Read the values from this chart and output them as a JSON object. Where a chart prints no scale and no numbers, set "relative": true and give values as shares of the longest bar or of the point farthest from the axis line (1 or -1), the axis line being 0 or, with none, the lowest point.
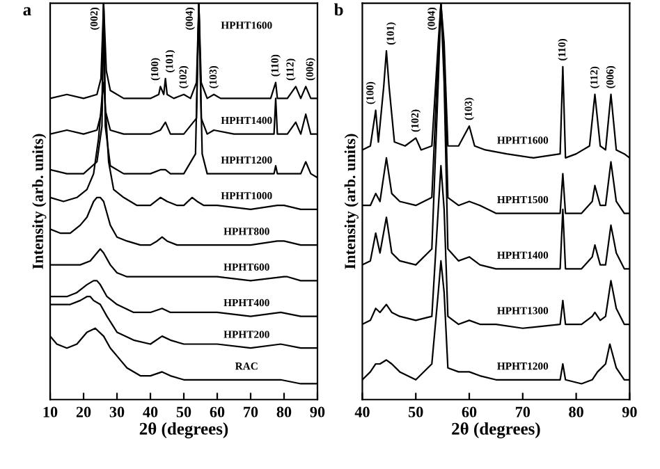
{
  "chart_data": [
    {
      "type": "line",
      "title": "a",
      "xlabel": "2θ (degrees)",
      "ylabel": "Intensity (arb. units)",
      "relative": true,
      "xlim": [
        10,
        90
      ],
      "xticks": [
        10,
        20,
        30,
        40,
        50,
        60,
        70,
        80,
        90
      ],
      "tick_labels": "x",
      "legend": false,
      "grid": false,
      "marker": "none",
      "line_style": "solid",
      "annotations": [
        {
          "text": "(002)",
          "x": 26,
          "y": 1.0
        },
        {
          "text": "(100)",
          "x": 43,
          "y": 0.79
        },
        {
          "text": "(101)",
          "x": 44.5,
          "y": 0.81
        },
        {
          "text": "(102)",
          "x": 50,
          "y": 0.77
        },
        {
          "text": "(004)",
          "x": 54.5,
          "y": 1.0
        },
        {
          "text": "(103)",
          "x": 59,
          "y": 0.77
        },
        {
          "text": "(110)",
          "x": 77.5,
          "y": 0.8
        },
        {
          "text": "(112)",
          "x": 83.5,
          "y": 0.79
        },
        {
          "text": "(006)",
          "x": 86.5,
          "y": 0.79
        }
      ],
      "series": [
        {
          "name": "HPHT1600",
          "color": "#000000",
          "x": [
            10,
            15,
            20,
            24,
            25.2,
            26,
            26.8,
            28,
            32,
            40,
            42.5,
            43,
            44,
            44.5,
            45,
            47,
            50,
            52,
            53.8,
            54.5,
            55.2,
            57,
            59,
            61,
            65,
            70,
            76,
            77.5,
            78,
            81,
            83.5,
            85,
            86.5,
            88,
            90
          ],
          "values": [
            0.76,
            0.77,
            0.76,
            0.77,
            0.81,
            1,
            0.83,
            0.78,
            0.76,
            0.76,
            0.77,
            0.79,
            0.77,
            0.81,
            0.77,
            0.76,
            0.77,
            0.76,
            0.8,
            1,
            0.8,
            0.76,
            0.77,
            0.76,
            0.76,
            0.76,
            0.76,
            0.8,
            0.76,
            0.76,
            0.79,
            0.76,
            0.79,
            0.76,
            0.76
          ]
        },
        {
          "name": "HPHT1400",
          "color": "#000000",
          "x": [
            10,
            15,
            20,
            24,
            25.5,
            26,
            26.5,
            28,
            32,
            40,
            43,
            44.5,
            46,
            50,
            53.8,
            54.5,
            55.2,
            57,
            59,
            65,
            70,
            77,
            77.5,
            78,
            81,
            83.5,
            85,
            86.5,
            88,
            90
          ],
          "values": [
            0.67,
            0.68,
            0.67,
            0.68,
            0.73,
            1,
            0.73,
            0.68,
            0.67,
            0.67,
            0.68,
            0.7,
            0.67,
            0.67,
            0.71,
            1,
            0.71,
            0.67,
            0.68,
            0.67,
            0.67,
            0.67,
            0.76,
            0.67,
            0.67,
            0.7,
            0.67,
            0.72,
            0.67,
            0.67
          ]
        },
        {
          "name": "HPHT1200",
          "color": "#000000",
          "x": [
            10,
            15,
            20,
            24,
            25.5,
            26,
            26.5,
            28,
            32,
            40,
            43,
            44.5,
            46,
            50,
            53.5,
            54.5,
            55.5,
            57,
            60,
            65,
            70,
            77,
            77.5,
            78,
            83,
            85,
            86.5,
            88,
            90
          ],
          "values": [
            0.58,
            0.57,
            0.57,
            0.6,
            0.69,
            1,
            0.69,
            0.59,
            0.57,
            0.57,
            0.58,
            0.58,
            0.57,
            0.57,
            0.62,
            1,
            0.62,
            0.57,
            0.57,
            0.57,
            0.57,
            0.57,
            0.59,
            0.57,
            0.57,
            0.57,
            0.6,
            0.57,
            0.56
          ]
        },
        {
          "name": "HPHT1000",
          "color": "#000000",
          "x": [
            10,
            14,
            18,
            21,
            23,
            24.5,
            25.5,
            26,
            26.5,
            27.5,
            29,
            32,
            36,
            40,
            43,
            45,
            48,
            50,
            52.5,
            54,
            56,
            60,
            70,
            78,
            80,
            85,
            90
          ],
          "values": [
            0.51,
            0.5,
            0.51,
            0.53,
            0.57,
            0.66,
            0.76,
            0.8,
            0.74,
            0.6,
            0.53,
            0.51,
            0.49,
            0.49,
            0.51,
            0.5,
            0.49,
            0.49,
            0.51,
            0.5,
            0.49,
            0.49,
            0.48,
            0.49,
            0.49,
            0.48,
            0.48
          ]
        },
        {
          "name": "HPHT800",
          "color": "#000000",
          "x": [
            10,
            13,
            16,
            19,
            21,
            23,
            24,
            25,
            26,
            27,
            28,
            30,
            33,
            37,
            40,
            42,
            43.5,
            45,
            48,
            55,
            60,
            70,
            78,
            80,
            85,
            90
          ],
          "values": [
            0.43,
            0.42,
            0.42,
            0.44,
            0.46,
            0.5,
            0.51,
            0.51,
            0.5,
            0.47,
            0.44,
            0.41,
            0.4,
            0.39,
            0.39,
            0.4,
            0.41,
            0.4,
            0.39,
            0.39,
            0.39,
            0.39,
            0.4,
            0.4,
            0.39,
            0.39
          ]
        },
        {
          "name": "HPHT600",
          "color": "#000000",
          "x": [
            10,
            13,
            16,
            19,
            22,
            24,
            25,
            26,
            28,
            30,
            33,
            38,
            42,
            43.5,
            45,
            50,
            60,
            70,
            80,
            81,
            85,
            90
          ],
          "values": [
            0.34,
            0.34,
            0.34,
            0.34,
            0.35,
            0.37,
            0.38,
            0.37,
            0.34,
            0.32,
            0.31,
            0.31,
            0.31,
            0.31,
            0.31,
            0.31,
            0.31,
            0.3,
            0.31,
            0.31,
            0.3,
            0.3
          ]
        },
        {
          "name": "HPHT400",
          "color": "#000000",
          "x": [
            10,
            13,
            15,
            18,
            21,
            23,
            24,
            25,
            27,
            30,
            35,
            40,
            43.5,
            46,
            50,
            60,
            70,
            79,
            85,
            90
          ],
          "values": [
            0.26,
            0.26,
            0.26,
            0.27,
            0.29,
            0.3,
            0.3,
            0.29,
            0.26,
            0.24,
            0.22,
            0.22,
            0.23,
            0.22,
            0.22,
            0.22,
            0.21,
            0.22,
            0.21,
            0.21
          ]
        },
        {
          "name": "HPHT200",
          "color": "#000000",
          "x": [
            10,
            13,
            16,
            19,
            21,
            22,
            23,
            25,
            27,
            30,
            35,
            40,
            43.5,
            46,
            50,
            60,
            70,
            79,
            85,
            90
          ],
          "values": [
            0.24,
            0.24,
            0.24,
            0.25,
            0.26,
            0.26,
            0.25,
            0.24,
            0.21,
            0.17,
            0.15,
            0.14,
            0.16,
            0.15,
            0.14,
            0.14,
            0.13,
            0.14,
            0.13,
            0.13
          ]
        },
        {
          "name": "RAC",
          "color": "#000000",
          "x": [
            10,
            12,
            15,
            18,
            21,
            23.5,
            26,
            28,
            30,
            33,
            37,
            40,
            43.5,
            46,
            50,
            60,
            70,
            79,
            85,
            90
          ],
          "values": [
            0.16,
            0.14,
            0.13,
            0.14,
            0.17,
            0.18,
            0.16,
            0.13,
            0.11,
            0.08,
            0.06,
            0.06,
            0.07,
            0.06,
            0.05,
            0.05,
            0.05,
            0.05,
            0.04,
            0.04
          ]
        }
      ]
    },
    {
      "type": "line",
      "title": "b",
      "xlabel": "2θ (degrees)",
      "ylabel": "Intensity (arb. units)",
      "relative": true,
      "xlim": [
        40,
        90
      ],
      "xticks": [
        40,
        50,
        60,
        70,
        80,
        90
      ],
      "tick_labels": "x",
      "legend": false,
      "grid": false,
      "marker": "none",
      "line_style": "solid",
      "annotations": [
        {
          "text": "(100)",
          "x": 42.5,
          "y": 0.73
        },
        {
          "text": "(101)",
          "x": 44.5,
          "y": 0.88
        },
        {
          "text": "(102)",
          "x": 50,
          "y": 0.66
        },
        {
          "text": "(004)",
          "x": 54.7,
          "y": 1.0
        },
        {
          "text": "(103)",
          "x": 60,
          "y": 0.69
        },
        {
          "text": "(110)",
          "x": 77.5,
          "y": 0.84
        },
        {
          "text": "(112)",
          "x": 83.5,
          "y": 0.77
        },
        {
          "text": "(006)",
          "x": 86.5,
          "y": 0.77
        }
      ],
      "series": [
        {
          "name": "HPHT1600",
          "color": "#000000",
          "x": [
            40,
            41.5,
            42.5,
            43,
            44,
            44.5,
            45,
            46,
            48,
            50,
            51,
            53,
            54.2,
            54.7,
            55.3,
            56,
            58,
            60,
            61,
            63,
            67,
            72,
            77,
            77.5,
            78,
            80,
            82.5,
            83.5,
            84.5,
            85.5,
            86.5,
            87.5,
            89,
            90
          ],
          "values": [
            0.63,
            0.64,
            0.73,
            0.65,
            0.79,
            0.88,
            0.79,
            0.65,
            0.64,
            0.66,
            0.63,
            0.64,
            0.9,
            1,
            0.9,
            0.64,
            0.64,
            0.69,
            0.64,
            0.63,
            0.62,
            0.61,
            0.62,
            0.84,
            0.61,
            0.62,
            0.64,
            0.77,
            0.64,
            0.63,
            0.77,
            0.63,
            0.62,
            0.61
          ]
        },
        {
          "name": "HPHT1500",
          "color": "#000000",
          "x": [
            40,
            41.5,
            42.5,
            43.3,
            44.5,
            45.5,
            47,
            50,
            53,
            54.2,
            54.7,
            55.3,
            56,
            58,
            60,
            62,
            65,
            70,
            77,
            77.5,
            78,
            81,
            83,
            83.5,
            84.5,
            85.5,
            86.5,
            87.5,
            89,
            90
          ],
          "values": [
            0.49,
            0.49,
            0.52,
            0.5,
            0.61,
            0.52,
            0.5,
            0.49,
            0.51,
            0.87,
            1,
            0.87,
            0.51,
            0.49,
            0.5,
            0.49,
            0.47,
            0.47,
            0.47,
            0.57,
            0.47,
            0.47,
            0.5,
            0.54,
            0.49,
            0.49,
            0.6,
            0.5,
            0.47,
            0.47
          ]
        },
        {
          "name": "HPHT1400",
          "color": "#000000",
          "x": [
            40,
            41.5,
            42.5,
            43.3,
            44.5,
            45.5,
            47,
            50,
            53,
            54.2,
            54.7,
            55.3,
            56,
            58,
            60,
            62,
            65,
            70,
            77,
            77.5,
            78,
            81,
            83,
            83.5,
            84.5,
            85.5,
            86.5,
            87.5,
            89,
            90
          ],
          "values": [
            0.34,
            0.35,
            0.42,
            0.37,
            0.46,
            0.37,
            0.35,
            0.34,
            0.38,
            0.8,
            1,
            0.8,
            0.38,
            0.35,
            0.36,
            0.34,
            0.33,
            0.33,
            0.33,
            0.48,
            0.33,
            0.33,
            0.36,
            0.39,
            0.34,
            0.34,
            0.44,
            0.37,
            0.33,
            0.33
          ]
        },
        {
          "name": "HPHT1300",
          "color": "#000000",
          "x": [
            40,
            41.5,
            42.5,
            43.3,
            44.5,
            45.5,
            47,
            50,
            53,
            54.2,
            54.7,
            55.3,
            56,
            58,
            60,
            62,
            65,
            70,
            77,
            77.5,
            78,
            81,
            83,
            83.5,
            84.5,
            85.5,
            86.5,
            87.5,
            89,
            90
          ],
          "values": [
            0.19,
            0.2,
            0.23,
            0.22,
            0.24,
            0.22,
            0.21,
            0.2,
            0.21,
            0.48,
            0.59,
            0.48,
            0.21,
            0.19,
            0.2,
            0.19,
            0.19,
            0.18,
            0.19,
            0.25,
            0.19,
            0.19,
            0.21,
            0.22,
            0.2,
            0.21,
            0.3,
            0.23,
            0.19,
            0.19
          ]
        },
        {
          "name": "HPHT1200",
          "color": "#000000",
          "x": [
            40,
            41.5,
            42.5,
            43.3,
            44.5,
            45.5,
            47,
            50,
            53,
            54.2,
            54.7,
            55.3,
            56,
            58,
            60,
            62,
            65,
            70,
            77,
            77.5,
            78,
            81,
            83,
            84,
            85.5,
            86.3,
            87.5,
            89,
            90
          ],
          "values": [
            0.05,
            0.07,
            0.09,
            0.09,
            0.1,
            0.09,
            0.07,
            0.05,
            0.09,
            0.27,
            0.35,
            0.27,
            0.08,
            0.07,
            0.07,
            0.06,
            0.05,
            0.05,
            0.05,
            0.09,
            0.05,
            0.04,
            0.05,
            0.07,
            0.09,
            0.14,
            0.08,
            0.05,
            0.05
          ]
        }
      ]
    }
  ]
}
